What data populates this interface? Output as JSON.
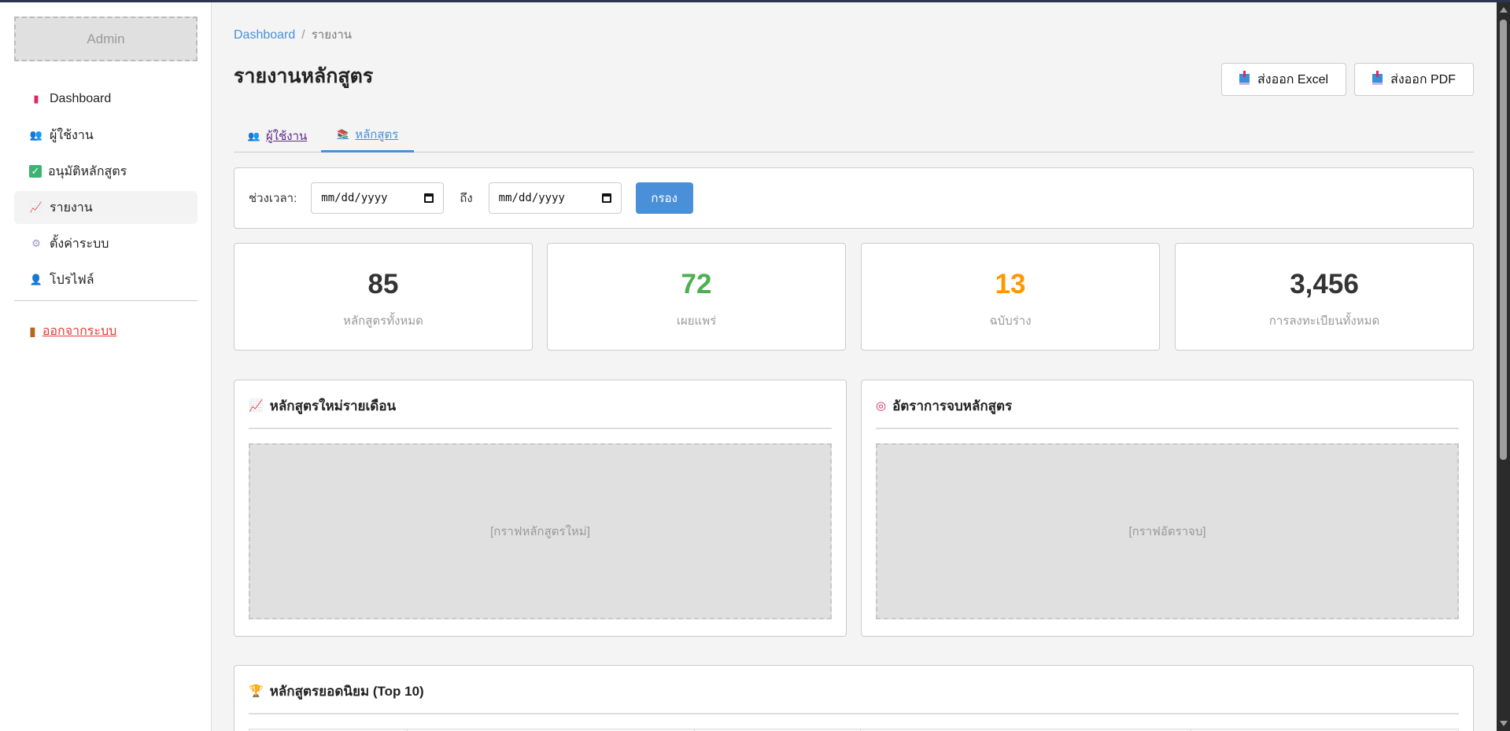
{
  "sidebar": {
    "user": "Admin",
    "items": [
      {
        "label": "Dashboard",
        "icon": "bar-chart-icon"
      },
      {
        "label": "ผู้ใช้งาน",
        "icon": "users-icon"
      },
      {
        "label": "อนุมัติหลักสูตร",
        "icon": "check-icon"
      },
      {
        "label": "รายงาน",
        "icon": "line-chart-icon",
        "active": true
      },
      {
        "label": "ตั้งค่าระบบ",
        "icon": "gear-icon"
      },
      {
        "label": "โปรไฟล์",
        "icon": "user-icon"
      }
    ],
    "logout": "ออกจากระบบ"
  },
  "breadcrumb": {
    "home": "Dashboard",
    "sep": "/",
    "current": "รายงาน"
  },
  "page": {
    "title": "รายงานหลักสูตร",
    "export_excel": "ส่งออก Excel",
    "export_pdf": "ส่งออก PDF"
  },
  "tabs": [
    {
      "label": "ผู้ใช้งาน"
    },
    {
      "label": "หลักสูตร",
      "active": true
    }
  ],
  "filter": {
    "label": "ช่วงเวลา:",
    "from": "mm/dd/yyyy",
    "to_label": "ถึง",
    "to": "mm/dd/yyyy",
    "button": "กรอง"
  },
  "stats": [
    {
      "value": "85",
      "label": "หลักสูตรทั้งหมด",
      "color": "#333333"
    },
    {
      "value": "72",
      "label": "เผยแพร่",
      "color": "#4caf50"
    },
    {
      "value": "13",
      "label": "ฉบับร่าง",
      "color": "#ff9800"
    },
    {
      "value": "3,456",
      "label": "การลงทะเบียนทั้งหมด",
      "color": "#333333"
    }
  ],
  "charts": [
    {
      "title": "หลักสูตรใหม่รายเดือน",
      "icon": "line-chart-icon",
      "placeholder": "[กราฟหลักสูตรใหม่]"
    },
    {
      "title": "อัตราการจบหลักสูตร",
      "icon": "target-icon",
      "placeholder": "[กราฟอัตราจบ]"
    }
  ],
  "top10": {
    "title": "หลักสูตรยอดนิยม (Top 10)",
    "icon": "trophy-icon"
  },
  "colors": {
    "accent": "#4a90d9",
    "logout": "#e53935"
  }
}
